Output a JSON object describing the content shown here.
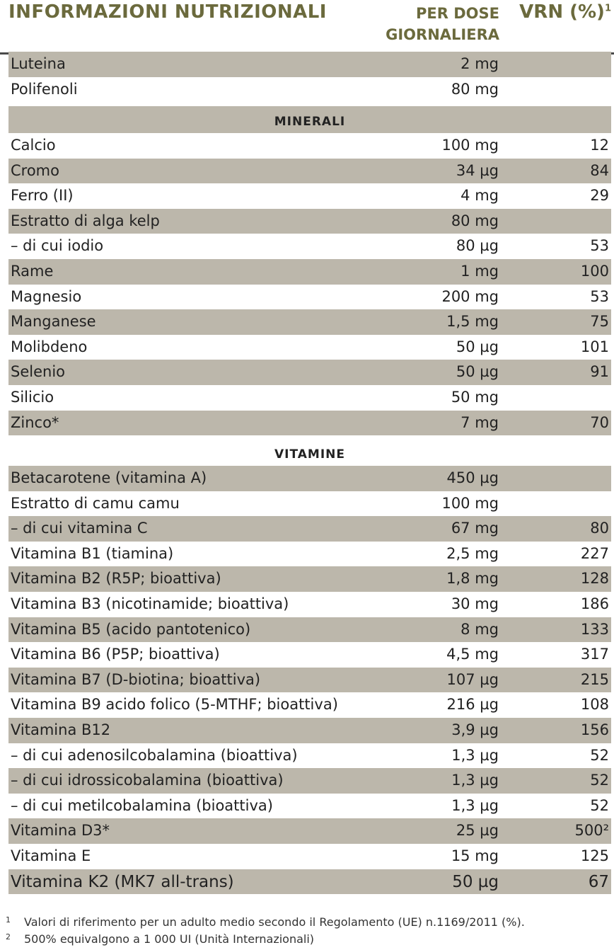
{
  "header": {
    "title": "INFORMAZIONI NUTRIZIONALI",
    "dose_line1": "PER DOSE",
    "dose_line2": "GIORNALIERA",
    "vrn": "VRN (%)",
    "vrn_note": "1"
  },
  "rows_top": [
    {
      "name": "Luteina",
      "amount": "2 mg",
      "vrn": ""
    },
    {
      "name": "Polifenoli",
      "amount": "80 mg",
      "vrn": ""
    }
  ],
  "section_minerali": "MINERALI",
  "minerali": [
    {
      "name": "Calcio",
      "amount": "100 mg",
      "vrn": "12"
    },
    {
      "name": "Cromo",
      "amount": "34 µg",
      "vrn": "84"
    },
    {
      "name": "Ferro (II)",
      "amount": "4 mg",
      "vrn": "29"
    },
    {
      "name": "Estratto di alga kelp",
      "amount": "80 mg",
      "vrn": ""
    },
    {
      "name": "– di cui iodio",
      "amount": "80 µg",
      "vrn": "53"
    },
    {
      "name": "Rame",
      "amount": "1 mg",
      "vrn": "100"
    },
    {
      "name": "Magnesio",
      "amount": "200 mg",
      "vrn": "53"
    },
    {
      "name": "Manganese",
      "amount": "1,5 mg",
      "vrn": "75"
    },
    {
      "name": "Molibdeno",
      "amount": "50 µg",
      "vrn": "101"
    },
    {
      "name": "Selenio",
      "amount": "50 µg",
      "vrn": "91"
    },
    {
      "name": "Silicio",
      "amount": "50 mg",
      "vrn": ""
    },
    {
      "name": "Zinco*",
      "amount": "7 mg",
      "vrn": "70"
    }
  ],
  "section_vitamine": "VITAMINE",
  "vitamine": [
    {
      "name": "Betacarotene (vitamina A)",
      "amount": "450 µg",
      "vrn": ""
    },
    {
      "name": "Estratto di camu camu",
      "amount": "100 mg",
      "vrn": ""
    },
    {
      "name": "– di cui vitamina C",
      "amount": "67 mg",
      "vrn": "80"
    },
    {
      "name": "Vitamina B1 (tiamina)",
      "amount": "2,5 mg",
      "vrn": "227"
    },
    {
      "name": "Vitamina B2 (R5P; bioattiva)",
      "amount": "1,8 mg",
      "vrn": "128"
    },
    {
      "name": "Vitamina B3 (nicotinamide; bioattiva)",
      "amount": "30 mg",
      "vrn": "186"
    },
    {
      "name": "Vitamina B5 (acido pantotenico)",
      "amount": "8 mg",
      "vrn": "133"
    },
    {
      "name": "Vitamina B6 (P5P; bioattiva)",
      "amount": "4,5 mg",
      "vrn": "317"
    },
    {
      "name": "Vitamina B7 (D-biotina; bioattiva)",
      "amount": "107 µg",
      "vrn": "215"
    },
    {
      "name": "Vitamina B9 acido folico (5-MTHF; bioattiva)",
      "amount": "216 µg",
      "vrn": "108"
    },
    {
      "name": "Vitamina B12",
      "amount": "3,9 µg",
      "vrn": "156"
    },
    {
      "name": "– di cui adenosilcobalamina (bioattiva)",
      "amount": "1,3 µg",
      "vrn": "52"
    },
    {
      "name": "– di cui idrossicobalamina (bioattiva)",
      "amount": "1,3 µg",
      "vrn": "52"
    },
    {
      "name": "– di cui metilcobalamina (bioattiva)",
      "amount": "1,3 µg",
      "vrn": "52"
    },
    {
      "name": "Vitamina D3*",
      "amount": "25 µg",
      "vrn": "500²"
    },
    {
      "name": "Vitamina E",
      "amount": "15 mg",
      "vrn": "125"
    },
    {
      "name": "Vitamina K2 (MK7 all-trans)",
      "amount": "50 µg",
      "vrn": "67"
    }
  ],
  "footnotes": [
    {
      "mark": "1",
      "text": "Valori di riferimento per un adulto medio secondo il Regolamento (UE) n.1169/2011 (%)."
    },
    {
      "mark": "2",
      "text": "500% equivalgono a 1 000 UI (Unità Internazionali)"
    }
  ]
}
